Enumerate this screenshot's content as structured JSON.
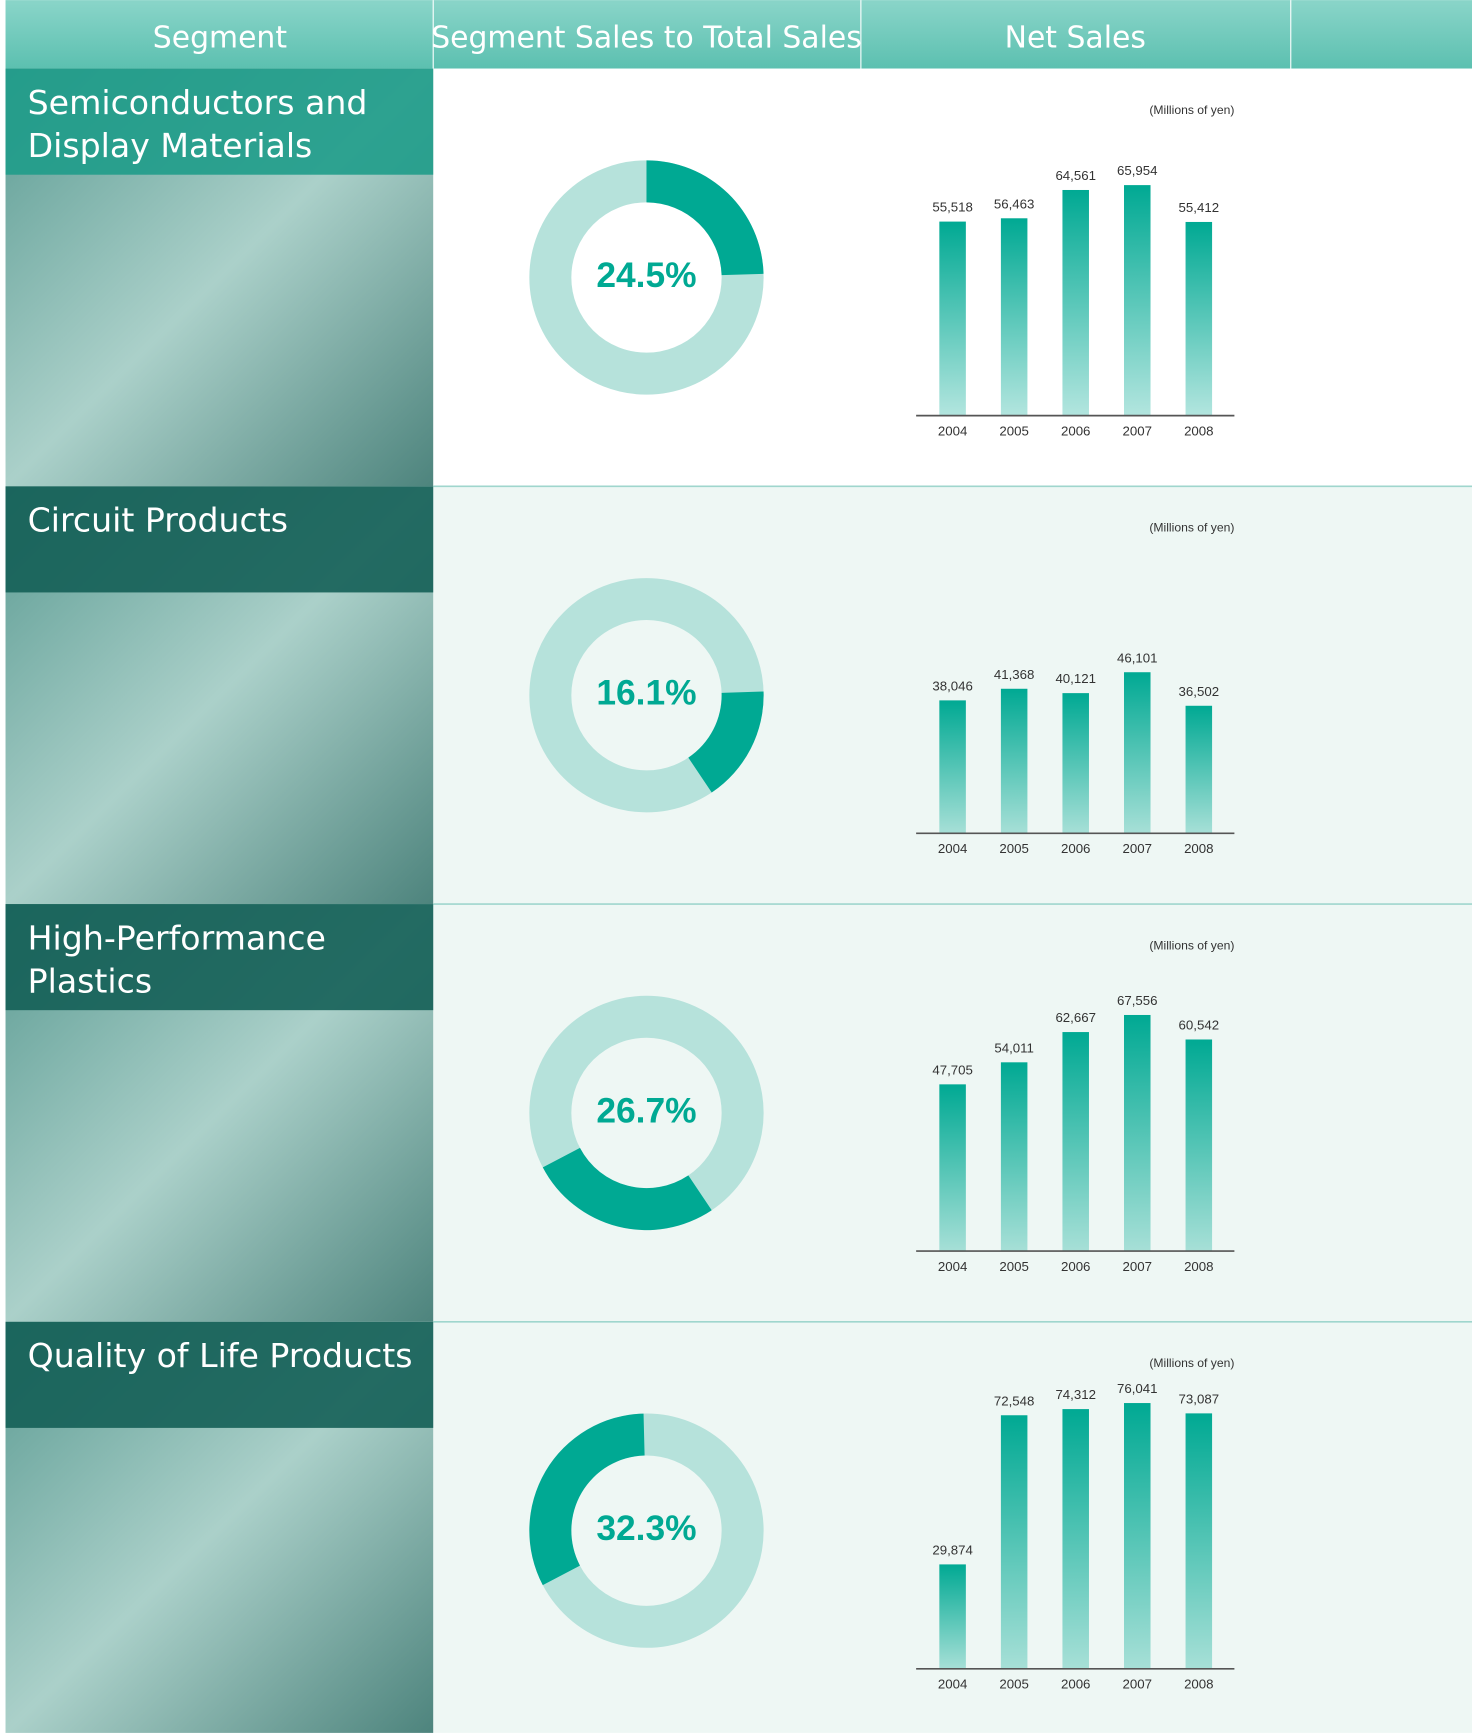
{
  "columns": [
    "Segment",
    "Segment Sales to Total Sales",
    "Net Sales"
  ],
  "rows": [
    {
      "segment": "Semiconductors and Display Materials",
      "share": {
        "type": "donut",
        "values": [
          24.5
        ],
        "value_labels": [
          "24.5%"
        ],
        "color": "#00a993",
        "track_color": "#b6e2db"
      },
      "sales": {
        "type": "bar",
        "unit": "(Millions of yen)",
        "categories": [
          "2004",
          "2005",
          "2006",
          "2007",
          "2008"
        ],
        "values": [
          55518,
          56463,
          64561,
          65954,
          55412
        ],
        "value_labels": [
          "55,518",
          "56,463",
          "64,561",
          "65,954",
          "55,412"
        ],
        "ylim": [
          0,
          80000
        ],
        "color": "#00a993"
      }
    },
    {
      "segment": "Circuit Products",
      "share": {
        "type": "donut",
        "values": [
          16.1
        ],
        "value_labels": [
          "16.1%"
        ],
        "color": "#00a993",
        "track_color": "#b6e2db"
      },
      "sales": {
        "type": "bar",
        "unit": "(Millions of yen)",
        "categories": [
          "2004",
          "2005",
          "2006",
          "2007",
          "2008"
        ],
        "values": [
          38046,
          41368,
          40121,
          46101,
          36502
        ],
        "value_labels": [
          "38,046",
          "41,368",
          "40,121",
          "46,101",
          "36,502"
        ],
        "ylim": [
          0,
          80000
        ],
        "color": "#00a993"
      }
    },
    {
      "segment": "High-Performance Plastics",
      "share": {
        "type": "donut",
        "values": [
          26.7
        ],
        "value_labels": [
          "26.7%"
        ],
        "color": "#00a993",
        "track_color": "#b6e2db"
      },
      "sales": {
        "type": "bar",
        "unit": "(Millions of yen)",
        "categories": [
          "2004",
          "2005",
          "2006",
          "2007",
          "2008"
        ],
        "values": [
          47705,
          54011,
          62667,
          67556,
          60542
        ],
        "value_labels": [
          "47,705",
          "54,011",
          "62,667",
          "67,556",
          "60,542"
        ],
        "ylim": [
          0,
          80000
        ],
        "color": "#00a993"
      }
    },
    {
      "segment": "Quality of Life Products",
      "share": {
        "type": "donut",
        "values": [
          32.3
        ],
        "value_labels": [
          "32.3%"
        ],
        "color": "#00a993",
        "track_color": "#b6e2db"
      },
      "sales": {
        "type": "bar",
        "unit": "(Millions of yen)",
        "categories": [
          "2004",
          "2005",
          "2006",
          "2007",
          "2008"
        ],
        "values": [
          29874,
          72548,
          74312,
          76041,
          73087
        ],
        "value_labels": [
          "29,874",
          "72,548",
          "74,312",
          "76,041",
          "73,087"
        ],
        "ylim": [
          0,
          80000
        ],
        "color": "#00a993"
      }
    }
  ]
}
